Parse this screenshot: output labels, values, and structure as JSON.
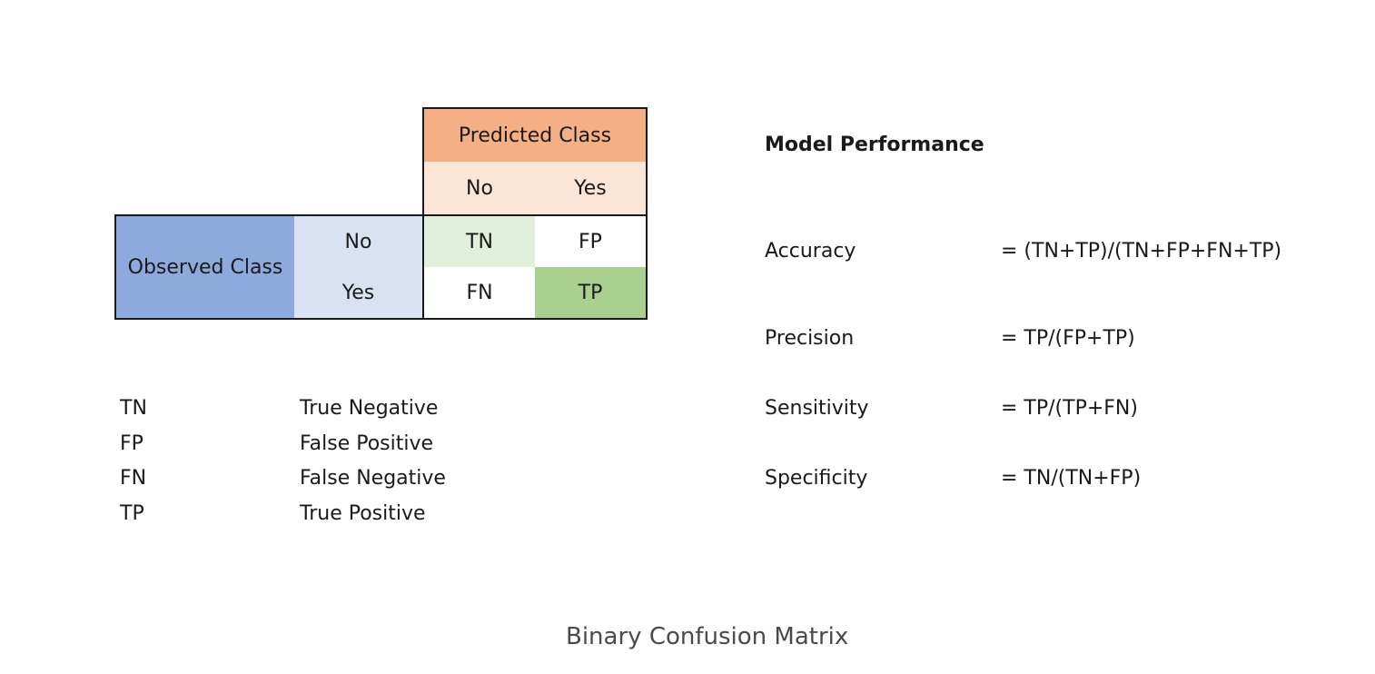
{
  "matrix": {
    "predicted_header": "Predicted Class",
    "predicted_no": "No",
    "predicted_yes": "Yes",
    "observed_header": "Observed Class",
    "observed_no": "No",
    "observed_yes": "Yes",
    "tn": "TN",
    "fp": "FP",
    "fn": "FN",
    "tp": "TP",
    "colors": {
      "predicted_header_bg": "#f4b084",
      "predicted_sub_bg": "#fbe5d6",
      "observed_header_bg": "#8ea9db",
      "observed_sub_bg": "#d9e1f2",
      "tn_bg": "#e2efda",
      "tp_bg": "#a9d08e",
      "plain_bg": "#ffffff"
    }
  },
  "legend": [
    {
      "abbr": "TN",
      "meaning": "True Negative"
    },
    {
      "abbr": "FP",
      "meaning": "False Positive"
    },
    {
      "abbr": "FN",
      "meaning": "False Negative"
    },
    {
      "abbr": "TP",
      "meaning": "True Positive"
    }
  ],
  "performance": {
    "title": "Model Performance",
    "metrics": [
      {
        "name": "Accuracy",
        "formula": "= (TN+TP)/(TN+FP+FN+TP)"
      },
      {
        "name": "Precision",
        "formula": "= TP/(FP+TP)"
      },
      {
        "name": "Sensitivity",
        "formula": "= TP/(TP+FN)"
      },
      {
        "name": "Specificity",
        "formula": "= TN/(TN+FP)"
      }
    ]
  },
  "caption": "Binary Confusion Matrix"
}
